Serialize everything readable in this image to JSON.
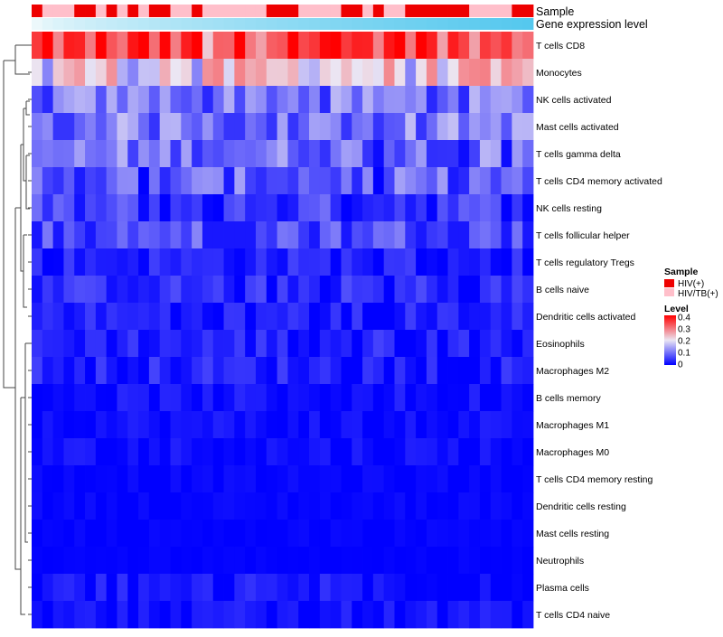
{
  "chart_data": {
    "type": "heatmap",
    "title": "",
    "annotations": [
      {
        "name": "Sample",
        "kind": "categorical"
      },
      {
        "name": "Gene expression level",
        "kind": "continuous",
        "color": "#55c8ee"
      }
    ],
    "sample_groups": [
      {
        "label": "HIV(+)",
        "color": "#ee0000"
      },
      {
        "label": "HIV/TB(+)",
        "color": "#ffbfca"
      }
    ],
    "sample_pattern": "0,1,1,1,0,0,1,0,1,0,1,0,0,1,1,0,1,1,1,1,1,1,0,0,0,1,1,1,1,0,0,1,0,1,1,0,0,0,0,0,0,1,1,1,1,0,0",
    "color_scale": {
      "name": "Level",
      "low": "#0000ff",
      "mid": "#ebe6f3",
      "high": "#ff0000",
      "domain": [
        0,
        0.2,
        0.4
      ],
      "ticks": [
        "0.4",
        "0.3",
        "0.2",
        "0.1",
        "0"
      ]
    },
    "rows": [
      "T cells CD8",
      "Monocytes",
      "NK cells activated",
      "Mast cells activated",
      "T cells gamma delta",
      "T cells CD4 memory activated",
      "NK cells resting",
      "T cells follicular helper",
      "T cells regulatory  Tregs",
      "B cells naive",
      "Dendritic cells activated",
      "Eosinophils",
      "Macrophages M2",
      "B cells memory",
      "Macrophages M1",
      "Macrophages M0",
      "T cells CD4 memory resting",
      "Dendritic cells resting",
      "Mast cells resting",
      "Neutrophils",
      "Plasma cells",
      "T cells CD4 naive"
    ],
    "row_means": [
      0.33,
      0.22,
      0.11,
      0.12,
      0.1,
      0.08,
      0.05,
      0.08,
      0.03,
      0.04,
      0.03,
      0.03,
      0.03,
      0.015,
      0.012,
      0.012,
      0.005,
      0.005,
      0.003,
      0.002,
      0.02,
      0.015
    ],
    "row_spreads": [
      0.07,
      0.07,
      0.05,
      0.05,
      0.06,
      0.06,
      0.05,
      0.04,
      0.03,
      0.03,
      0.025,
      0.03,
      0.03,
      0.02,
      0.02,
      0.02,
      0.008,
      0.008,
      0.006,
      0.004,
      0.03,
      0.02
    ],
    "legend": {
      "sample_title": "Sample",
      "level_title": "Level"
    }
  }
}
